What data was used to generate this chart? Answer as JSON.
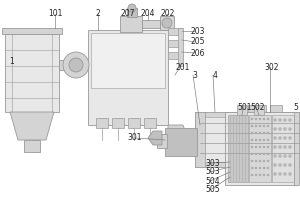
{
  "figsize": [
    3.0,
    2.0
  ],
  "dpi": 100,
  "bg_color": "#ffffff",
  "ec": "#999999",
  "fc_light": "#e8e8e8",
  "fc_mid": "#d4d4d4",
  "fc_dark": "#c0c0c0",
  "lw": 0.6,
  "labels": [
    [
      "1",
      12,
      62
    ],
    [
      "101",
      55,
      14
    ],
    [
      "2",
      98,
      14
    ],
    [
      "207",
      128,
      14
    ],
    [
      "204",
      148,
      14
    ],
    [
      "202",
      168,
      14
    ],
    [
      "203",
      198,
      31
    ],
    [
      "205",
      198,
      42
    ],
    [
      "206",
      198,
      53
    ],
    [
      "201",
      183,
      67
    ],
    [
      "3",
      195,
      75
    ],
    [
      "4",
      215,
      75
    ],
    [
      "302",
      272,
      67
    ],
    [
      "301",
      135,
      138
    ],
    [
      "303",
      213,
      163
    ],
    [
      "503",
      213,
      172
    ],
    [
      "504",
      213,
      181
    ],
    [
      "505",
      213,
      190
    ],
    [
      "501",
      245,
      107
    ],
    [
      "502",
      258,
      107
    ],
    [
      "5",
      296,
      107
    ]
  ]
}
